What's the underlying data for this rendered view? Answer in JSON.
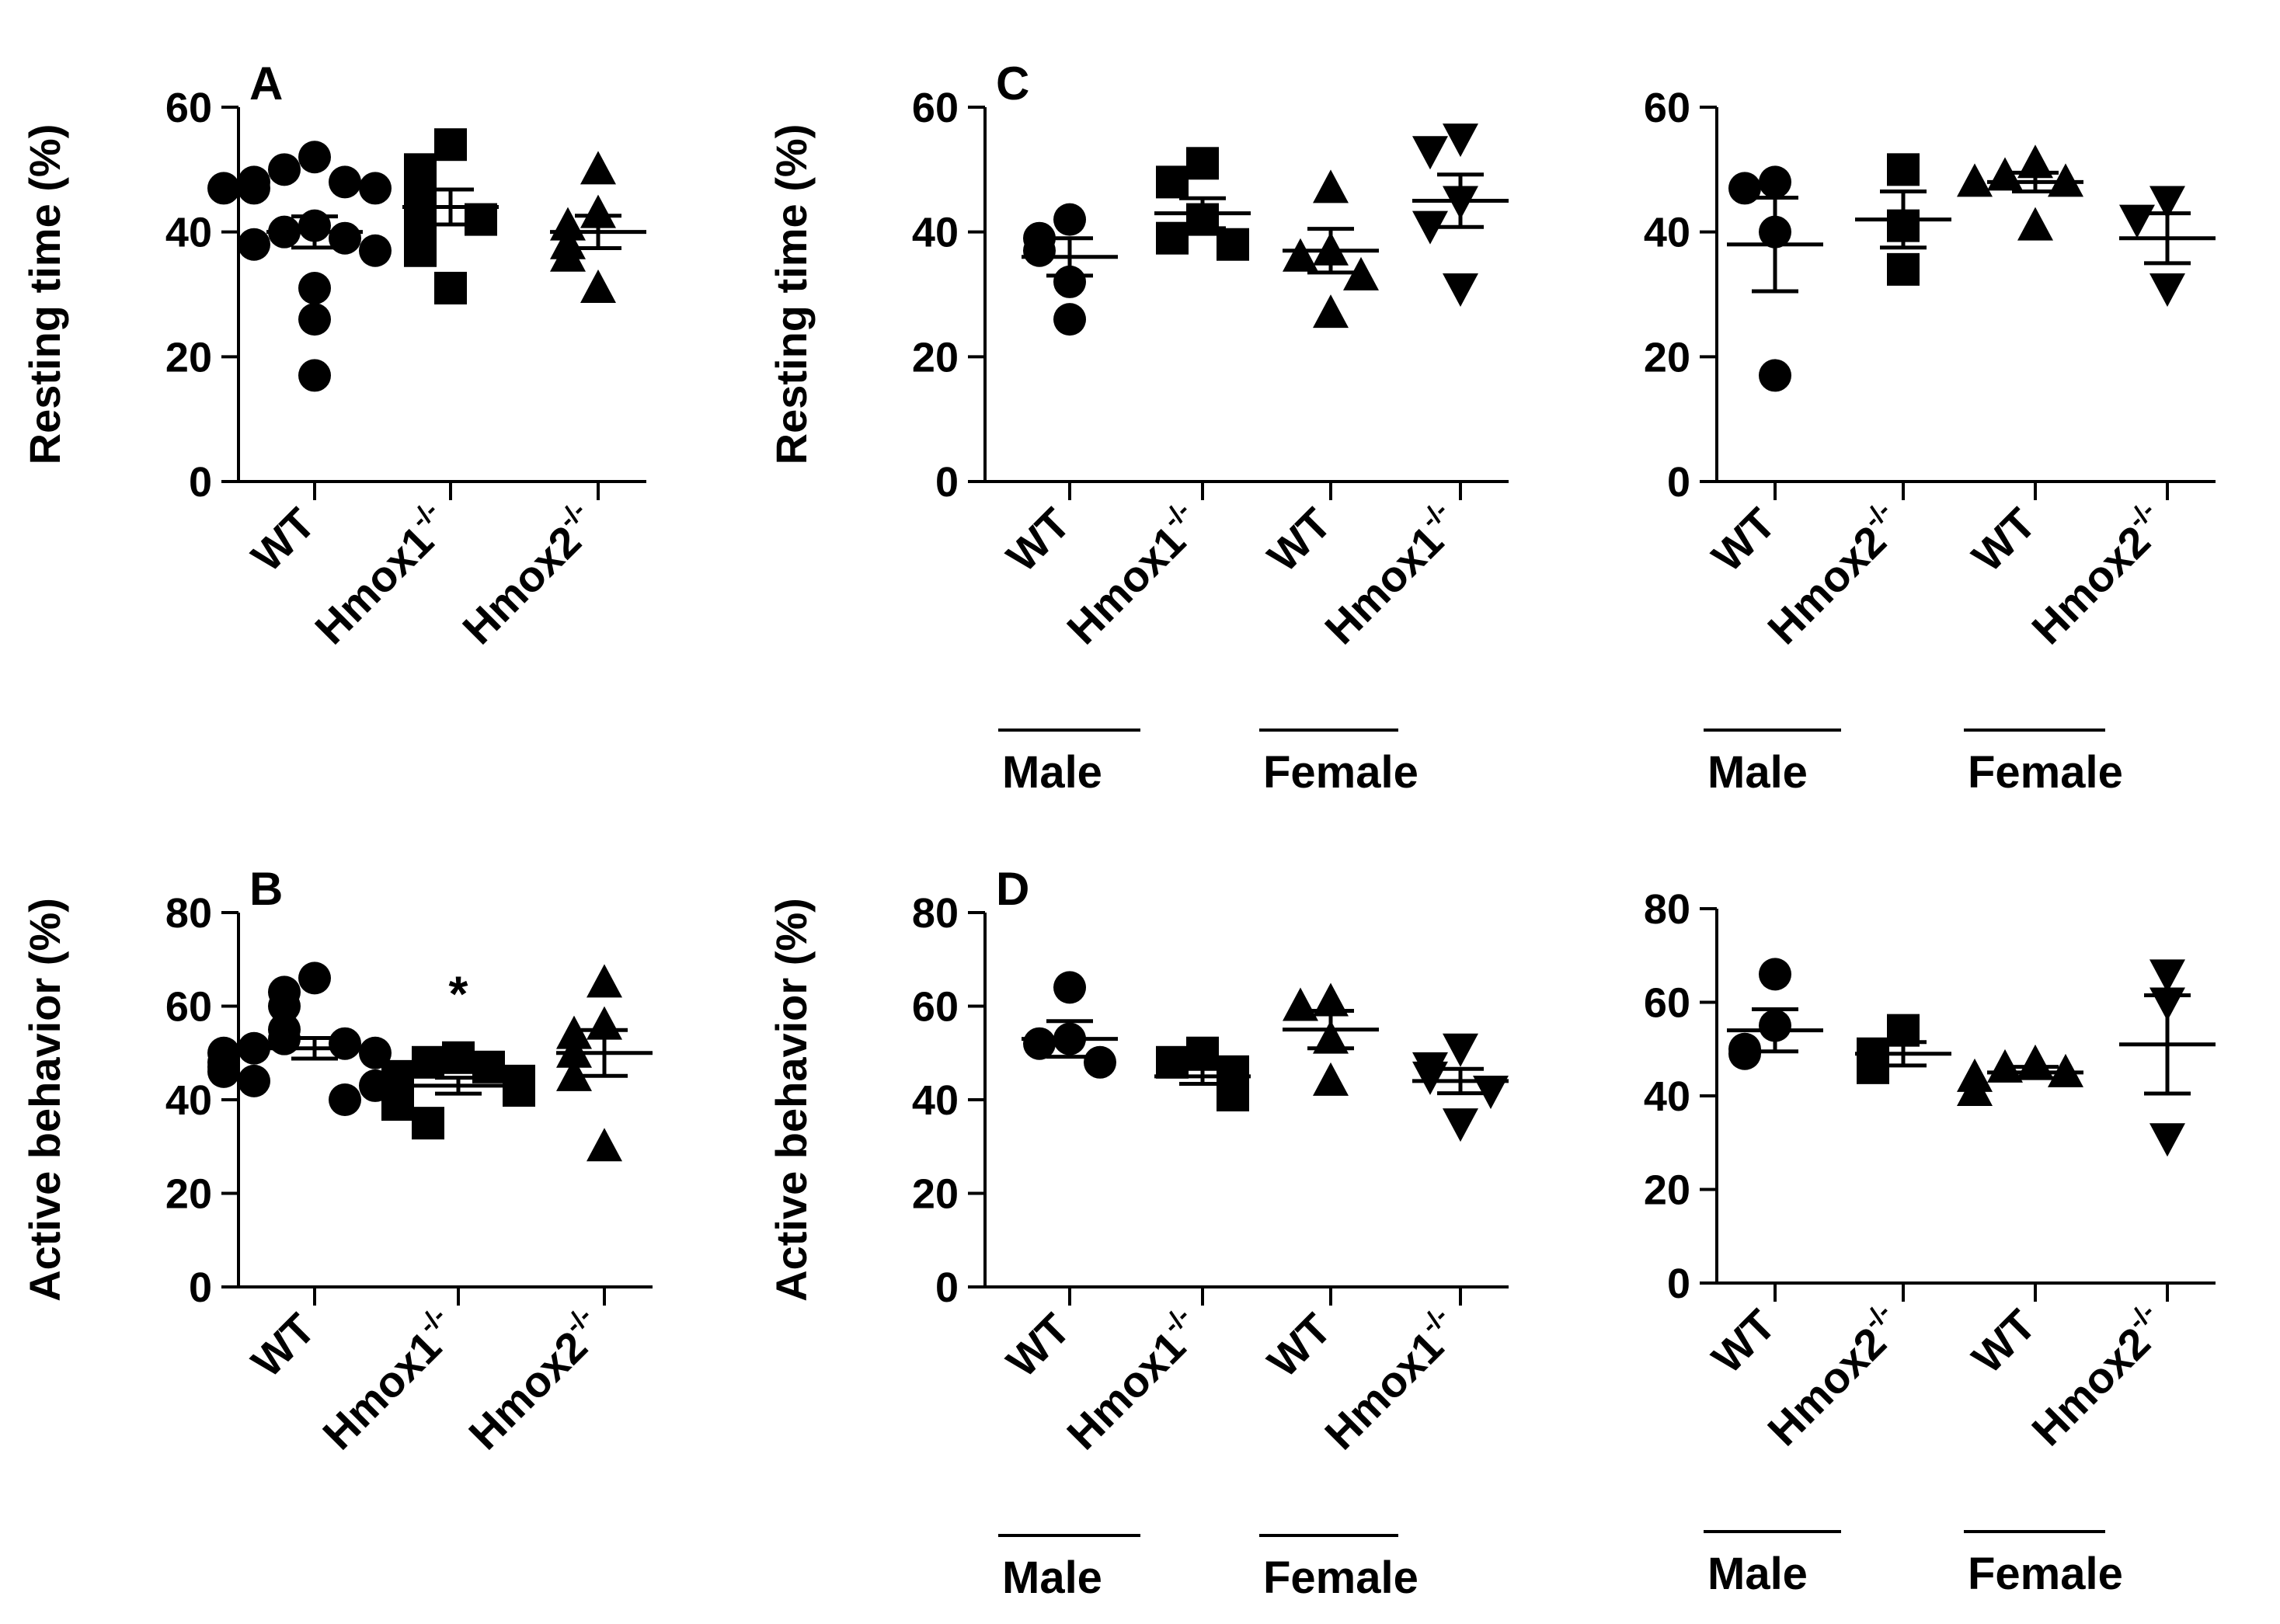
{
  "chart_data": [
    {
      "id": "A",
      "type": "scatter",
      "panel_label": "A",
      "ylabel": "Resting time (%)",
      "ylim": [
        0,
        60
      ],
      "yticks": [
        "0",
        "20",
        "40",
        "60"
      ],
      "groups": [
        {
          "name": "WT",
          "sup": "",
          "marker": "circle",
          "mean": 40,
          "sem": 2.5,
          "values": [
            52,
            50,
            48,
            48,
            47,
            47,
            47,
            41,
            40,
            39,
            38,
            37,
            31,
            26,
            17
          ]
        },
        {
          "name": "Hmox1",
          "sup": "-/-",
          "marker": "square",
          "mean": 44,
          "sem": 2.8,
          "values": [
            54,
            50,
            49,
            45,
            43,
            42,
            38,
            37,
            31
          ]
        },
        {
          "name": "Hmox2",
          "sup": "-/-",
          "marker": "triangle-up",
          "mean": 40,
          "sem": 2.6,
          "values": [
            50,
            43,
            41,
            38,
            36,
            31
          ]
        }
      ],
      "significance": [],
      "bracket_groups": []
    },
    {
      "id": "B",
      "type": "scatter",
      "panel_label": "B",
      "ylabel": "Active behavior (%)",
      "ylim": [
        0,
        80
      ],
      "yticks": [
        "0",
        "20",
        "40",
        "60",
        "80"
      ],
      "groups": [
        {
          "name": "WT",
          "sup": "",
          "marker": "circle",
          "mean": 51,
          "sem": 2.2,
          "values": [
            66,
            63,
            60,
            55,
            53,
            52,
            51,
            50,
            50,
            48,
            47,
            46,
            44,
            43,
            40
          ]
        },
        {
          "name": "Hmox1",
          "sup": "-/-",
          "marker": "square",
          "mean": 43,
          "sem": 1.7,
          "values": [
            49,
            48,
            47,
            45,
            44,
            43,
            42,
            39,
            35
          ]
        },
        {
          "name": "Hmox2",
          "sup": "-/-",
          "marker": "triangle-up",
          "mean": 50,
          "sem": 4.9,
          "values": [
            65,
            56,
            54,
            50,
            45,
            30
          ]
        }
      ],
      "significance": [
        {
          "group": 1,
          "label": "*",
          "y": 64
        }
      ],
      "bracket_groups": []
    },
    {
      "id": "C",
      "type": "scatter",
      "panel_label": "C",
      "ylabel": "Resting time (%)",
      "ylim": [
        0,
        60
      ],
      "yticks": [
        "0",
        "20",
        "40",
        "60"
      ],
      "groups": [
        {
          "name": "WT",
          "sup": "",
          "marker": "circle",
          "mean": 36,
          "sem": 3.0,
          "values": [
            42,
            39,
            37,
            32,
            26
          ]
        },
        {
          "name": "Hmox1",
          "sup": "-/-",
          "marker": "square",
          "mean": 43,
          "sem": 2.4,
          "values": [
            51,
            48,
            42,
            39,
            38
          ]
        },
        {
          "name": "WT",
          "sup": "",
          "marker": "triangle-up",
          "mean": 37,
          "sem": 3.5,
          "values": [
            47,
            37,
            36,
            33,
            27
          ]
        },
        {
          "name": "Hmox1",
          "sup": "-/-",
          "marker": "triangle-down",
          "mean": 45,
          "sem": 4.2,
          "values": [
            55,
            53,
            45,
            41,
            31
          ]
        }
      ],
      "significance": [],
      "bracket_groups": [
        {
          "label": "Male",
          "from": 0,
          "to": 1
        },
        {
          "label": "Female",
          "from": 2,
          "to": 3
        }
      ]
    },
    {
      "id": "C2",
      "type": "scatter",
      "panel_label": "",
      "ylabel": "",
      "ylim": [
        0,
        60
      ],
      "yticks": [
        "0",
        "20",
        "40",
        "60"
      ],
      "groups": [
        {
          "name": "WT",
          "sup": "",
          "marker": "circle",
          "mean": 38,
          "sem": 7.5,
          "values": [
            48,
            47,
            40,
            17
          ]
        },
        {
          "name": "Hmox2",
          "sup": "-/-",
          "marker": "square",
          "mean": 42,
          "sem": 4.5,
          "values": [
            50,
            41,
            34
          ]
        },
        {
          "name": "WT",
          "sup": "",
          "marker": "triangle-up",
          "mean": 48,
          "sem": 1.5,
          "values": [
            51,
            49,
            48,
            48,
            41
          ]
        },
        {
          "name": "Hmox2",
          "sup": "-/-",
          "marker": "triangle-down",
          "mean": 39,
          "sem": 4.0,
          "values": [
            45,
            42,
            31
          ]
        }
      ],
      "significance": [],
      "bracket_groups": [
        {
          "label": "Male",
          "from": 0,
          "to": 1
        },
        {
          "label": "Female",
          "from": 2,
          "to": 3
        }
      ]
    },
    {
      "id": "D",
      "type": "scatter",
      "panel_label": "D",
      "ylabel": "Active behavior (%)",
      "ylim": [
        0,
        80
      ],
      "yticks": [
        "0",
        "20",
        "40",
        "60",
        "80"
      ],
      "groups": [
        {
          "name": "WT",
          "sup": "",
          "marker": "circle",
          "mean": 53,
          "sem": 3.8,
          "values": [
            64,
            53,
            52,
            48
          ]
        },
        {
          "name": "Hmox1",
          "sup": "-/-",
          "marker": "square",
          "mean": 45,
          "sem": 1.6,
          "values": [
            50,
            48,
            46,
            43,
            41
          ]
        },
        {
          "name": "WT",
          "sup": "",
          "marker": "triangle-up",
          "mean": 55,
          "sem": 4.0,
          "values": [
            61,
            60,
            53,
            44
          ]
        },
        {
          "name": "Hmox1",
          "sup": "-/-",
          "marker": "triangle-down",
          "mean": 44,
          "sem": 2.6,
          "values": [
            51,
            47,
            45,
            42,
            35
          ]
        }
      ],
      "significance": [],
      "bracket_groups": [
        {
          "label": "Male",
          "from": 0,
          "to": 1
        },
        {
          "label": "Female",
          "from": 2,
          "to": 3
        }
      ]
    },
    {
      "id": "D2",
      "type": "scatter",
      "panel_label": "",
      "ylabel": "",
      "ylim": [
        0,
        80
      ],
      "yticks": [
        "0",
        "20",
        "40",
        "60",
        "80"
      ],
      "groups": [
        {
          "name": "WT",
          "sup": "",
          "marker": "circle",
          "mean": 54,
          "sem": 4.5,
          "values": [
            66,
            55,
            50,
            49
          ]
        },
        {
          "name": "Hmox2",
          "sup": "-/-",
          "marker": "square",
          "mean": 49,
          "sem": 2.5,
          "values": [
            54,
            49,
            46
          ]
        },
        {
          "name": "WT",
          "sup": "",
          "marker": "triangle-up",
          "mean": 45,
          "sem": 1.2,
          "values": [
            47,
            46,
            45,
            44,
            41
          ]
        },
        {
          "name": "Hmox2",
          "sup": "-/-",
          "marker": "triangle-down",
          "mean": 51,
          "sem": 10.5,
          "values": [
            66,
            60,
            31
          ]
        }
      ],
      "significance": [],
      "bracket_groups": [
        {
          "label": "Male",
          "from": 0,
          "to": 1
        },
        {
          "label": "Female",
          "from": 2,
          "to": 3
        }
      ]
    }
  ]
}
